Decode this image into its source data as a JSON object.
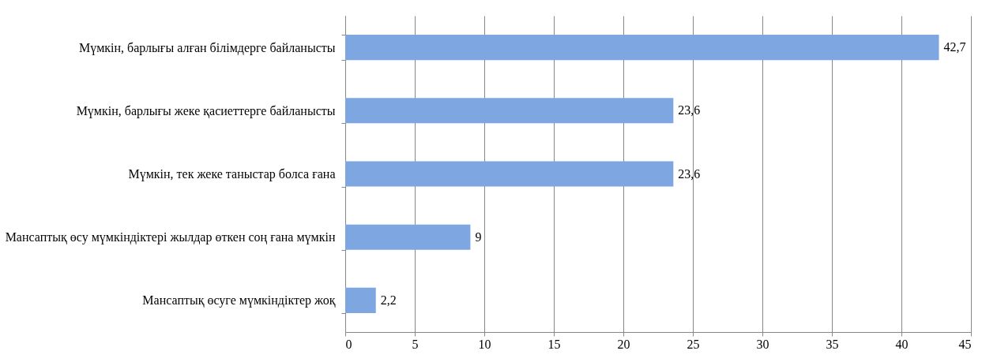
{
  "chart_data": {
    "type": "bar",
    "orientation": "horizontal",
    "categories": [
      "Мүмкін, барлығы алған білімдерге байланысты",
      "Мүмкін, барлығы жеке қасиеттерге байланысты",
      "Мүмкін, тек жеке таныстар болса ғана",
      "Мансаптық өсу мүмкіндіктері жылдар өткен соң ғана мүмкін",
      "Мансаптық өсуге мүмкіндіктер жоқ"
    ],
    "values": [
      42.7,
      23.6,
      23.6,
      9,
      2.2
    ],
    "value_labels": [
      "42,7",
      "23,6",
      "23,6",
      "9",
      "2,2"
    ],
    "color": "#7ea6e0",
    "xlim": [
      0,
      45
    ],
    "xticks": [
      0,
      5,
      10,
      15,
      20,
      25,
      30,
      35,
      40,
      45
    ],
    "grid": "x"
  }
}
